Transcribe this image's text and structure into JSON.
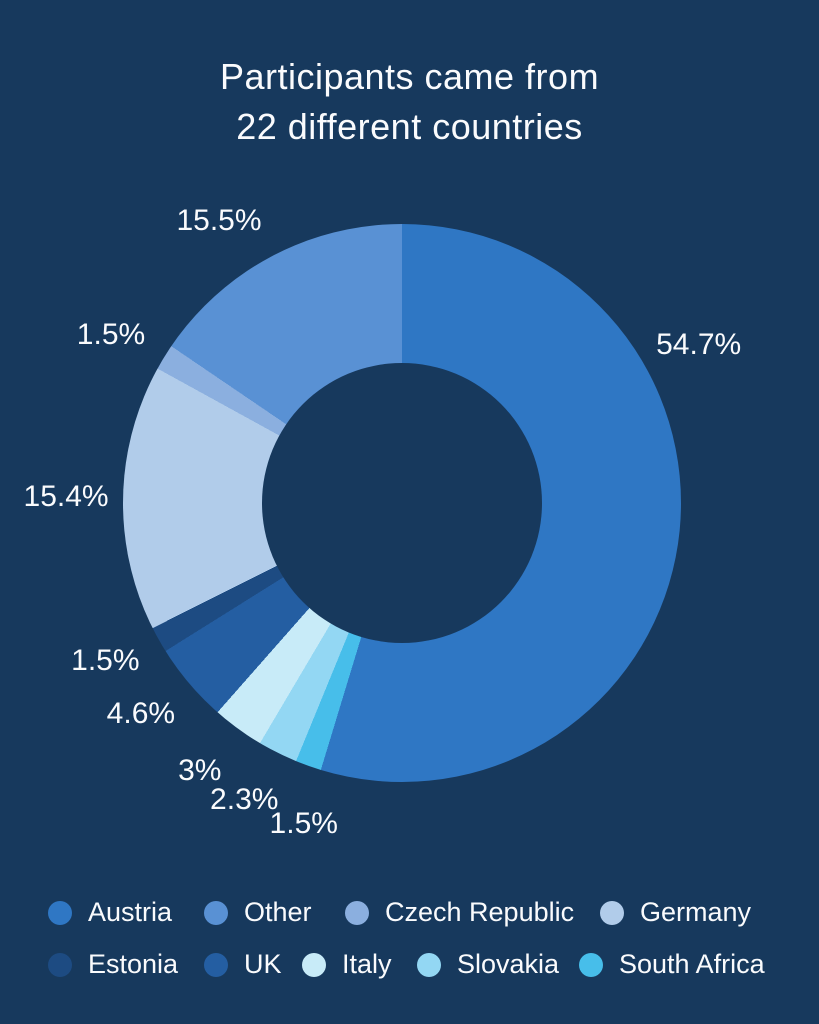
{
  "page": {
    "background": "#17395D",
    "text_color": "#FAFBFD"
  },
  "title": {
    "line1": "Participants came from",
    "line2": "22 different countries"
  },
  "chart_data": {
    "type": "pie",
    "donut": true,
    "title": "Participants came from 22 different countries",
    "start_angle_deg": 0,
    "direction": "clockwise",
    "hole_ratio": 0.5,
    "legend_position": "bottom",
    "segments": [
      {
        "label": "Austria",
        "value": 54.7,
        "display": "54.7%",
        "color": "#2F77C4",
        "label_angle_deg": 62
      },
      {
        "label": "South Africa",
        "value": 1.5,
        "display": "1.5%",
        "color": "#47BEEA",
        "label_angle_deg": 197
      },
      {
        "label": "Slovakia",
        "value": 2.3,
        "display": "2.3%",
        "color": "#93D7F3",
        "label_angle_deg": 208
      },
      {
        "label": "Italy",
        "value": 3,
        "display": "3%",
        "color": "#C8EBF8",
        "label_angle_deg": 217
      },
      {
        "label": "UK",
        "value": 4.6,
        "display": "4.6%",
        "color": "#245EA2",
        "label_angle_deg": 231
      },
      {
        "label": "Estonia",
        "value": 1.5,
        "display": "1.5%",
        "color": "#1D4B82",
        "label_angle_deg": 242
      },
      {
        "label": "Germany",
        "value": 15.4,
        "display": "15.4%",
        "color": "#B1CCEA",
        "label_angle_deg": 271
      },
      {
        "label": "Czech Republic",
        "value": 1.5,
        "display": "1.5%",
        "color": "#8BAFDF",
        "label_angle_deg": 300
      },
      {
        "label": "Other",
        "value": 15.5,
        "display": "15.5%",
        "color": "#5991D4",
        "label_angle_deg": 327
      }
    ],
    "legend_rows": [
      [
        "Austria",
        "Other",
        "Czech Republic",
        "Germany"
      ],
      [
        "Estonia",
        "UK",
        "Italy",
        "Slovakia",
        "South Africa"
      ]
    ]
  }
}
